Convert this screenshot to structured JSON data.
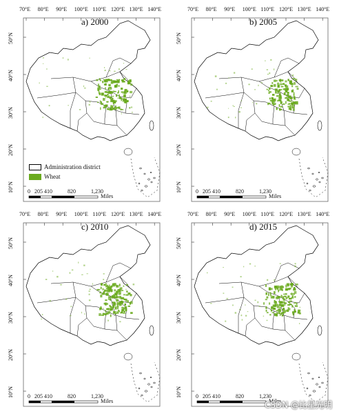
{
  "map": {
    "longitude_ticks": [
      "70°E",
      "80°E",
      "90°E",
      "100°E",
      "110°E",
      "120°E",
      "130°E",
      "140°E"
    ],
    "latitude_ticks": [
      "50°N",
      "40°N",
      "30°N",
      "20°N",
      "10°N"
    ],
    "scale": {
      "ticks": [
        "0",
        "205 410",
        "820",
        "1,230"
      ],
      "unit": "Miles"
    },
    "legend": [
      {
        "label": "Administration district",
        "color": "#ffffff"
      },
      {
        "label": "Wheat",
        "color": "#6aaa1e"
      }
    ],
    "panels": [
      {
        "title": "a) 2000"
      },
      {
        "title": "b) 2005"
      },
      {
        "title": "c) 2010"
      },
      {
        "title": "d) 2015"
      }
    ],
    "colors": {
      "wheat": "#6aaa1e",
      "boundary": "#000000",
      "frame": "#666666"
    }
  },
  "watermark": "CSDN @比星光明"
}
